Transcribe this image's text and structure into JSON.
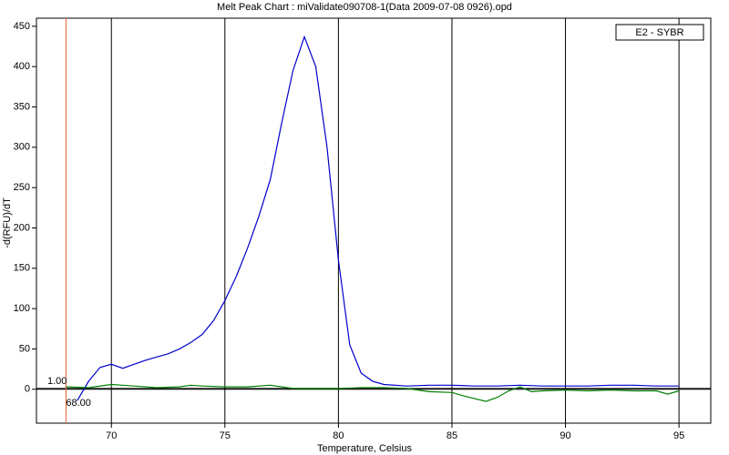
{
  "chart_data": {
    "type": "line",
    "title": "Melt Peak Chart : miValidate090708-1(Data 2009-07-08 0926).opd",
    "x_label": "Temperature, Celsius",
    "y_label": "-d(RFU)/dT",
    "legend_label": "E2 - SYBR",
    "xlim": [
      66.7,
      96.4
    ],
    "ylim": [
      -42,
      460
    ],
    "xticks": [
      70,
      75,
      80,
      85,
      90,
      95
    ],
    "yticks": [
      0,
      50,
      100,
      150,
      200,
      250,
      300,
      350,
      400,
      450
    ],
    "grid": "x",
    "threshold": {
      "value": 1,
      "label": "1.00"
    },
    "marker": {
      "value": 68,
      "label": "68.00"
    },
    "series": [
      {
        "color": "#0000cc",
        "x": [
          68.5,
          69,
          69.5,
          70,
          70.5,
          71,
          71.5,
          72,
          72.5,
          73,
          73.5,
          74,
          74.5,
          75,
          75.5,
          76,
          76.5,
          77,
          77.5,
          78,
          78.5,
          79,
          79.5,
          80,
          80.5,
          81,
          81.5,
          82,
          83,
          84,
          85,
          86,
          87,
          88,
          89,
          90,
          91,
          92,
          93,
          94,
          95
        ],
        "values": [
          -14,
          10,
          27,
          31,
          26,
          31,
          36,
          40,
          44,
          50,
          58,
          68,
          85,
          110,
          140,
          175,
          215,
          260,
          330,
          395,
          437,
          400,
          300,
          160,
          55,
          20,
          10,
          6,
          4,
          5,
          5,
          4,
          4,
          5,
          4,
          4,
          4,
          5,
          5,
          4,
          4
        ]
      },
      {
        "color": "#008000",
        "x": [
          68,
          69,
          70,
          71,
          72,
          73,
          73.5,
          74,
          75,
          76,
          77,
          77.5,
          78,
          79,
          80,
          81,
          82,
          83,
          84,
          85,
          85.5,
          86.5,
          87,
          87.5,
          88,
          88.5,
          89,
          90,
          91,
          92,
          93,
          94,
          94.5,
          95
        ],
        "values": [
          3,
          2,
          6,
          4,
          2,
          3,
          5,
          4,
          3,
          3,
          5,
          3,
          1,
          1,
          1,
          2,
          2,
          1,
          -3,
          -4,
          -8,
          -15,
          -10,
          -2,
          3,
          -3,
          -2,
          -1,
          -2,
          -1,
          -2,
          -2,
          -6,
          -2
        ]
      }
    ]
  }
}
